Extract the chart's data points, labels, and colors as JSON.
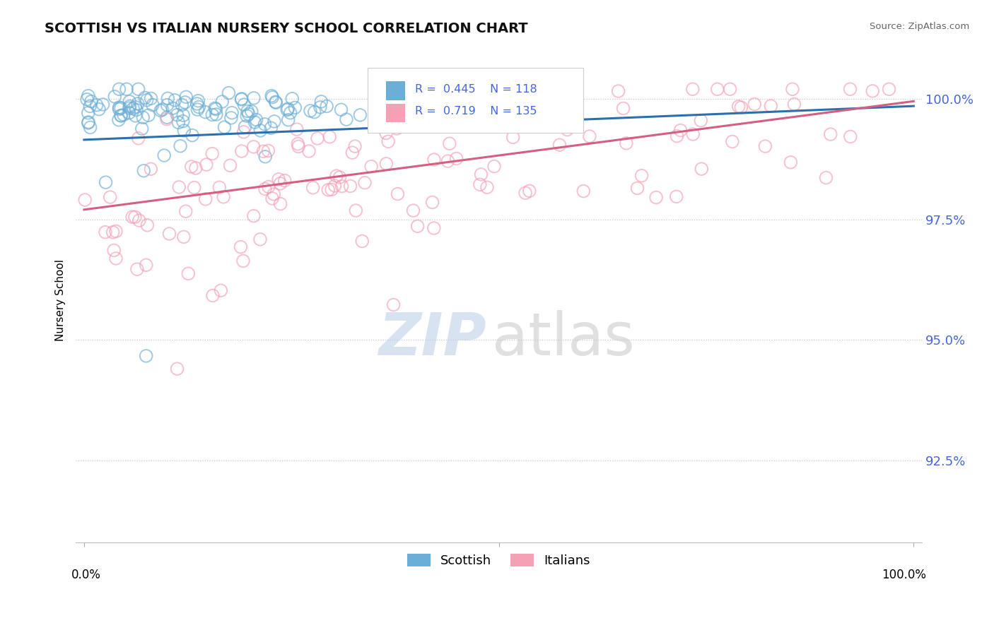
{
  "title": "SCOTTISH VS ITALIAN NURSERY SCHOOL CORRELATION CHART",
  "source": "Source: ZipAtlas.com",
  "ylabel": "Nursery School",
  "ytick_labels": [
    "100.0%",
    "97.5%",
    "95.0%",
    "92.5%"
  ],
  "ytick_values": [
    1.0,
    0.975,
    0.95,
    0.925
  ],
  "ymin": 0.908,
  "ymax": 1.0085,
  "xmin": -0.01,
  "xmax": 1.01,
  "scottish_R": 0.445,
  "scottish_N": 118,
  "italian_R": 0.719,
  "italian_N": 135,
  "scottish_color": "#6baed6",
  "italian_color": "#f4a0b5",
  "scottish_line_color": "#2c6fad",
  "italian_line_color": "#d45f80",
  "title_fontsize": 14,
  "axis_label_color": "#4466dd",
  "legend_box_color_scottish": "#6baed6",
  "legend_box_color_italian": "#f4a0b5",
  "background_color": "#ffffff",
  "scottish_line_y0": 0.9915,
  "scottish_line_y1": 0.9985,
  "italian_line_y0": 0.977,
  "italian_line_y1": 0.9995
}
